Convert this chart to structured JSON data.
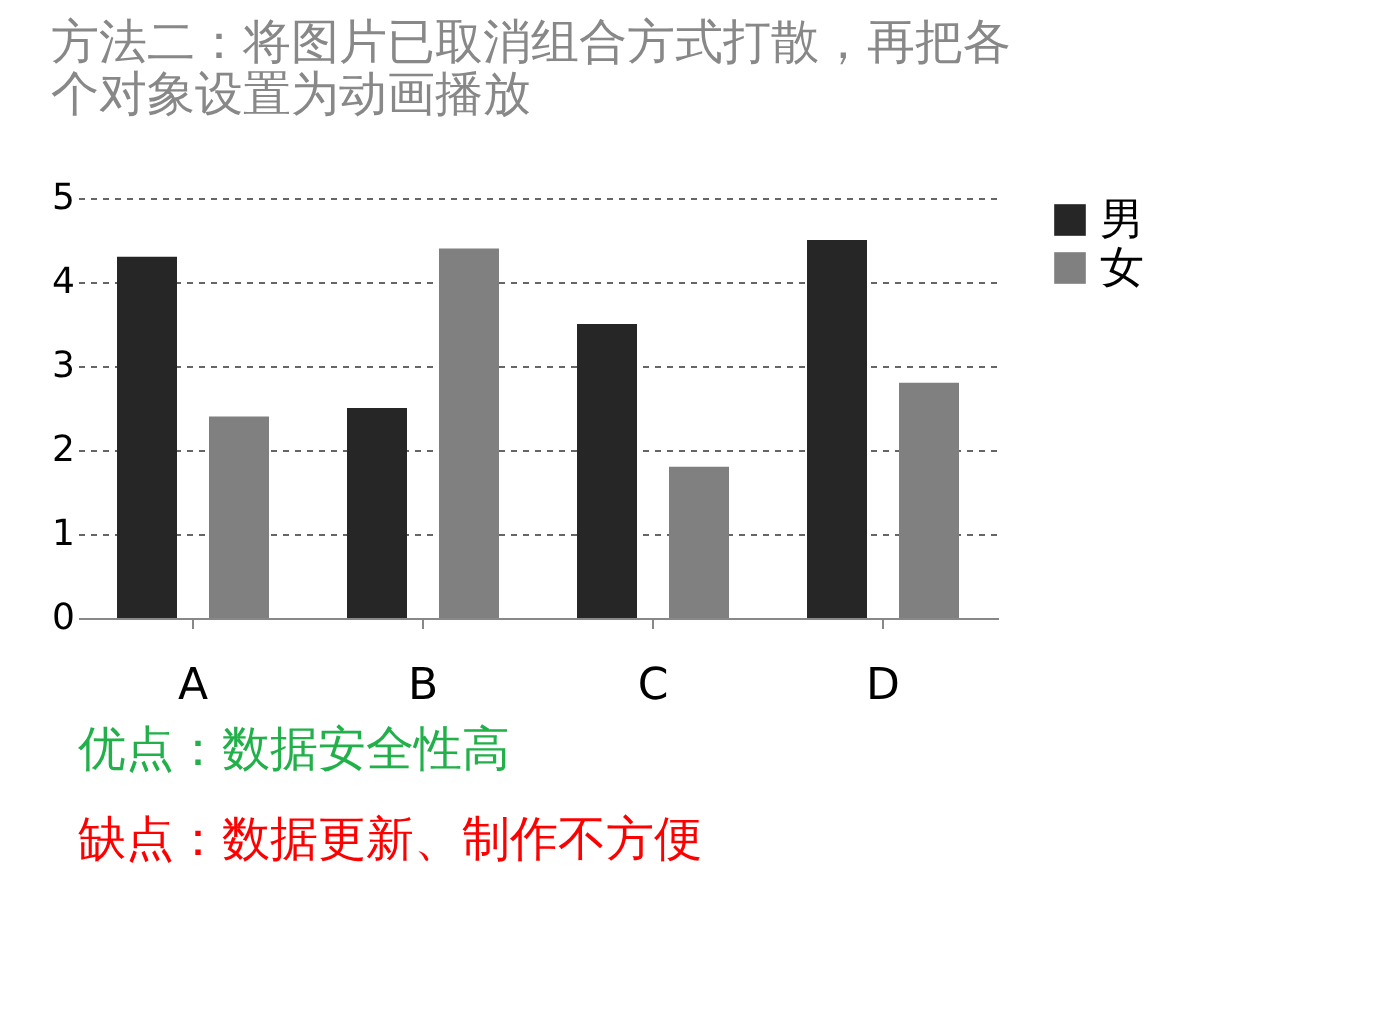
{
  "chart_data": {
    "type": "bar",
    "title": "方法二：将图片已取消组合方式打散，再把各个对象设置为动画播放",
    "categories": [
      "A",
      "B",
      "C",
      "D"
    ],
    "series": [
      {
        "name": "男",
        "color": "#262626",
        "values": [
          4.3,
          2.5,
          3.5,
          4.5
        ]
      },
      {
        "name": "女",
        "color": "#808080",
        "values": [
          2.4,
          4.4,
          1.8,
          2.8
        ]
      }
    ],
    "ylim": [
      0,
      5
    ],
    "yticks": [
      0,
      1,
      2,
      3,
      4,
      5
    ],
    "grid": "y",
    "legend": "right",
    "annotations": [
      "优点：数据安全性高",
      "缺点：数据更新、制作不方便"
    ]
  }
}
